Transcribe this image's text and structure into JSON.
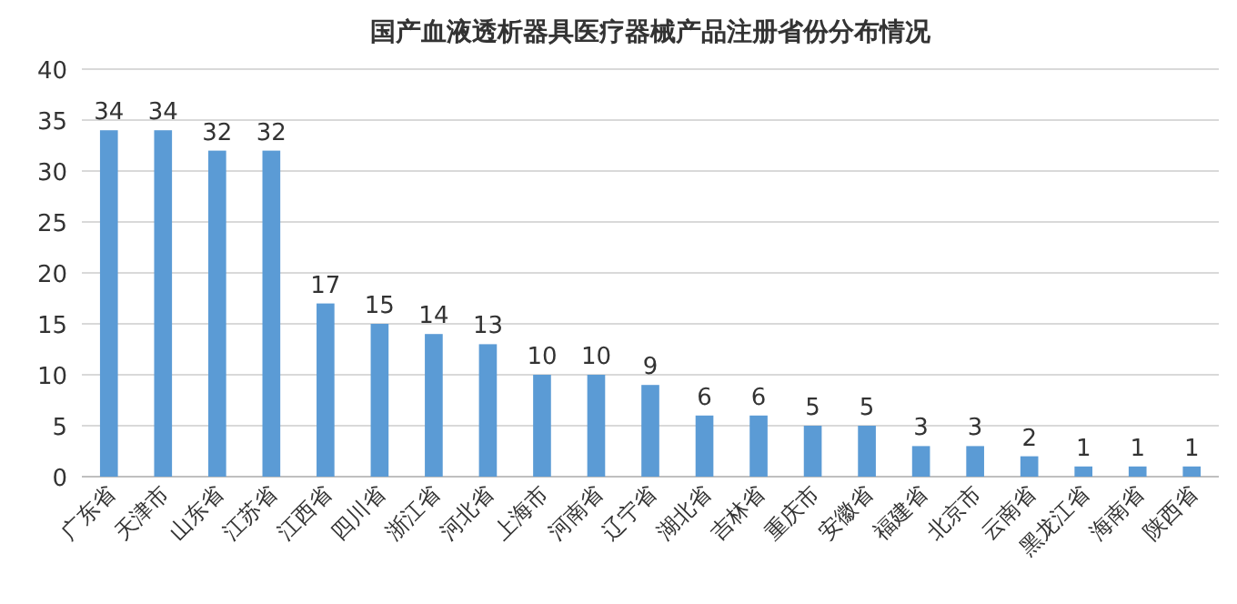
{
  "chart_data": {
    "type": "bar",
    "title": "国产血液透析器具医疗器械产品注册省份分布情况",
    "categories": [
      "广东省",
      "天津市",
      "山东省",
      "江苏省",
      "江西省",
      "四川省",
      "浙江省",
      "河北省",
      "上海市",
      "河南省",
      "辽宁省",
      "湖北省",
      "吉林省",
      "重庆市",
      "安徽省",
      "福建省",
      "北京市",
      "云南省",
      "黑龙江省",
      "海南省",
      "陕西省"
    ],
    "values": [
      34,
      34,
      32,
      32,
      17,
      15,
      14,
      13,
      10,
      10,
      9,
      6,
      6,
      5,
      5,
      3,
      3,
      2,
      1,
      1,
      1
    ],
    "color": "#5b9bd5",
    "ylim": [
      0,
      40
    ],
    "yticks": [
      0,
      5,
      10,
      15,
      20,
      25,
      30,
      35,
      40
    ],
    "grid": "y",
    "data_labels": true
  }
}
